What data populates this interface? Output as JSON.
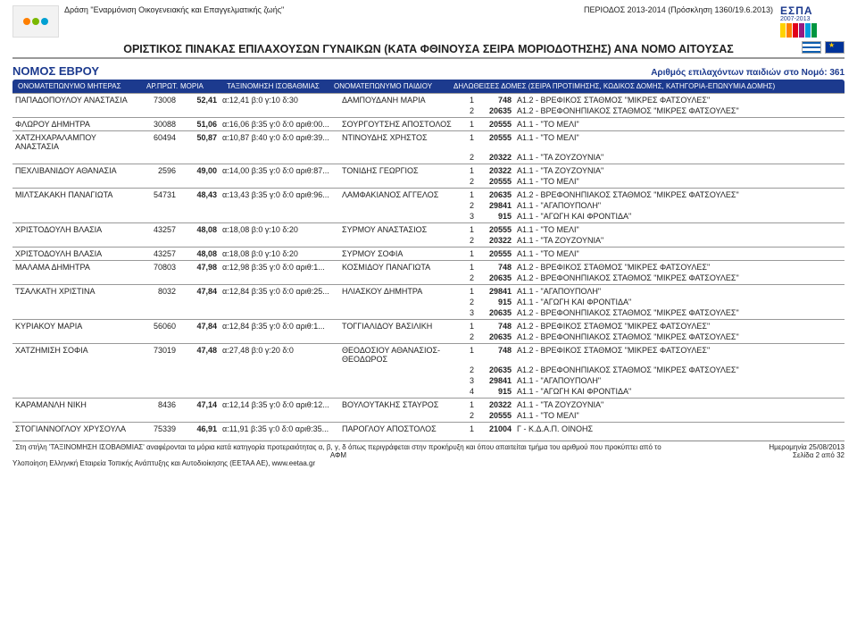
{
  "meta": {
    "action_line": "Δράση \"Εναρμόνιση Οικογενειακής και Επαγγελματικής ζωής\"",
    "period_text": "ΠΕΡΙΟΔΟΣ 2013-2014 (Πρόσκληση 1360/19.6.2013)",
    "main_title": "ΟΡΙΣΤΙΚΟΣ ΠΙΝΑΚΑΣ ΕΠΙΛΑΧΟΥΣΩΝ ΓΥΝΑΙΚΩΝ (ΚΑΤΑ ΦΘΙΝΟΥΣΑ ΣΕΙΡΑ ΜΟΡΙΟΔΟΤΗΣΗΣ) ΑΝΑ ΝΟΜΟ ΑΙΤΟΥΣΑΣ",
    "nomos_label": "ΝΟΜΟΣ ΕΒΡΟΥ",
    "count_text": "Αριθμός επιλαχόντων παιδιών  στο Νομό: 361",
    "espa_label": "ΕΣΠΑ",
    "espa_years": "2007-2013"
  },
  "colors": {
    "header_blue": "#1c3a8e",
    "row_border": "#999999",
    "text": "#222222"
  },
  "column_headers": {
    "name": "ΟΝΟΜΑΤΕΠΩΝΥΜΟ ΜΗΤΕΡΑΣ",
    "arpr": "ΑΡ.ΠΡΩΤ.",
    "moria": "ΜΟΡΙΑ",
    "tax": "ΤΑΞΙΝΟΜΗΣΗ ΙΣΟΒΑΘΜΙΑΣ",
    "child": "ΟΝΟΜΑΤΕΠΩΝΥΜΟ ΠΑΙΔΙΟΥ",
    "domes": "ΔΗΛΩΘΕΙΣΕΣ ΔΟΜΕΣ (ΣΕΙΡΑ ΠΡΟΤΙΜΗΣΗΣ, ΚΩΔΙΚΟΣ ΔΟΜΗΣ, ΚΑΤΗΓΟΡΙΑ-ΕΠΩΝΥΜΙΑ ΔΟΜΗΣ)"
  },
  "rows": [
    {
      "name": "ΠΑΠΑΔΟΠΟΥΛΟΥ ΑΝΑΣΤΑΣΙΑ",
      "arpr": "73008",
      "moria": "52,41",
      "tax": "α:12,41 β:0 γ:10 δ:30",
      "child": "ΔΑΜΠΟΥΔΑΝΗ ΜΑΡΙΑ",
      "domes": [
        {
          "n": "1",
          "code": "748",
          "txt": "Α1.2 - ΒΡΕΦΙΚΟΣ ΣΤΑΘΜΟΣ \"ΜΙΚΡΕΣ ΦΑΤΣΟΥΛΕΣ\""
        },
        {
          "n": "2",
          "code": "20635",
          "txt": "Α1.2 - ΒΡΕΦΟΝΗΠΙΑΚΟΣ ΣΤΑΘΜΟΣ \"ΜΙΚΡΕΣ ΦΑΤΣΟΥΛΕΣ\""
        }
      ]
    },
    {
      "name": "ΦΛΩΡΟΥ ΔΗΜΗΤΡΑ",
      "arpr": "30088",
      "moria": "51,06",
      "tax": "α:16,06 β:35 γ:0 δ:0 αριθ:00...",
      "child": "ΣΟΥΡΓΟΥΤΣΗΣ ΑΠΟΣΤΟΛΟΣ",
      "domes": [
        {
          "n": "1",
          "code": "20555",
          "txt": "Α1.1 - \"ΤΟ ΜΕΛΙ\""
        }
      ]
    },
    {
      "name": "ΧΑΤΖΗΧΑΡΑΛΑΜΠΟΥ ΑΝΑΣΤΑΣΙΑ",
      "arpr": "60494",
      "moria": "50,87",
      "tax": "α:10,87 β:40 γ:0 δ:0 αριθ:39...",
      "child": "ΝΤΙΝΟΥΔΗΣ ΧΡΗΣΤΟΣ",
      "domes": [
        {
          "n": "1",
          "code": "20555",
          "txt": "Α1.1 - \"ΤΟ ΜΕΛΙ\""
        },
        {
          "n": "2",
          "code": "20322",
          "txt": "Α1.1 - \"ΤΑ ΖΟΥΖΟΥΝΙΑ\""
        }
      ]
    },
    {
      "name": "ΠΕΧΛΙΒΑΝΙΔΟΥ ΑΘΑΝΑΣΙΑ",
      "arpr": "2596",
      "moria": "49,00",
      "tax": "α:14,00 β:35 γ:0 δ:0 αριθ:87...",
      "child": "ΤΟΝΙΔΗΣ ΓΕΩΡΓΙΟΣ",
      "domes": [
        {
          "n": "1",
          "code": "20322",
          "txt": "Α1.1 - \"ΤΑ ΖΟΥΖΟΥΝΙΑ\""
        },
        {
          "n": "2",
          "code": "20555",
          "txt": "Α1.1 - \"ΤΟ ΜΕΛΙ\""
        }
      ]
    },
    {
      "name": "ΜΙΛΤΣΑΚΑΚΗ ΠΑΝΑΓΙΩΤΑ",
      "arpr": "54731",
      "moria": "48,43",
      "tax": "α:13,43 β:35 γ:0 δ:0 αριθ:96...",
      "child": "ΛΑΜΦΑΚΙΑΝΟΣ ΑΓΓΕΛΟΣ",
      "domes": [
        {
          "n": "1",
          "code": "20635",
          "txt": "Α1.2 - ΒΡΕΦΟΝΗΠΙΑΚΟΣ ΣΤΑΘΜΟΣ \"ΜΙΚΡΕΣ ΦΑΤΣΟΥΛΕΣ\""
        },
        {
          "n": "2",
          "code": "29841",
          "txt": "Α1.1 - \"ΑΓΑΠΟΥΠΟΛΗ\""
        },
        {
          "n": "3",
          "code": "915",
          "txt": "Α1.1 - \"ΑΓΩΓΗ ΚΑΙ ΦΡΟΝΤΙΔΑ\""
        }
      ]
    },
    {
      "name": "ΧΡΙΣΤΟΔΟΥΛΗ ΒΛΑΣΙΑ",
      "arpr": "43257",
      "moria": "48,08",
      "tax": "α:18,08 β:0 γ:10 δ:20",
      "child": "ΣΥΡΜΟΥ ΑΝΑΣΤΑΣΙΟΣ",
      "domes": [
        {
          "n": "1",
          "code": "20555",
          "txt": "Α1.1 - \"ΤΟ ΜΕΛΙ\""
        },
        {
          "n": "2",
          "code": "20322",
          "txt": "Α1.1 - \"ΤΑ ΖΟΥΖΟΥΝΙΑ\""
        }
      ]
    },
    {
      "name": "ΧΡΙΣΤΟΔΟΥΛΗ ΒΛΑΣΙΑ",
      "arpr": "43257",
      "moria": "48,08",
      "tax": "α:18,08 β:0 γ:10 δ:20",
      "child": "ΣΥΡΜΟΥ ΣΟΦΙΑ",
      "domes": [
        {
          "n": "1",
          "code": "20555",
          "txt": "Α1.1 - \"ΤΟ ΜΕΛΙ\""
        }
      ]
    },
    {
      "name": "ΜΑΛΑΜΑ ΔΗΜΗΤΡΑ",
      "arpr": "70803",
      "moria": "47,98",
      "tax": "α:12,98 β:35 γ:0 δ:0 αριθ:1...",
      "child": "ΚΟΣΜΙΔΟΥ ΠΑΝΑΓΙΩΤΑ",
      "domes": [
        {
          "n": "1",
          "code": "748",
          "txt": "Α1.2 - ΒΡΕΦΙΚΟΣ ΣΤΑΘΜΟΣ \"ΜΙΚΡΕΣ ΦΑΤΣΟΥΛΕΣ\""
        },
        {
          "n": "2",
          "code": "20635",
          "txt": "Α1.2 - ΒΡΕΦΟΝΗΠΙΑΚΟΣ ΣΤΑΘΜΟΣ \"ΜΙΚΡΕΣ ΦΑΤΣΟΥΛΕΣ\""
        }
      ]
    },
    {
      "name": "ΤΣΑΛΚΑΤΗ ΧΡΙΣΤΙΝΑ",
      "arpr": "8032",
      "moria": "47,84",
      "tax": "α:12,84 β:35 γ:0 δ:0 αριθ:25...",
      "child": "ΗΛΙΑΣΚΟΥ ΔΗΜΗΤΡΑ",
      "domes": [
        {
          "n": "1",
          "code": "29841",
          "txt": "Α1.1 - \"ΑΓΑΠΟΥΠΟΛΗ\""
        },
        {
          "n": "2",
          "code": "915",
          "txt": "Α1.1 - \"ΑΓΩΓΗ ΚΑΙ ΦΡΟΝΤΙΔΑ\""
        },
        {
          "n": "3",
          "code": "20635",
          "txt": "Α1.2 - ΒΡΕΦΟΝΗΠΙΑΚΟΣ ΣΤΑΘΜΟΣ \"ΜΙΚΡΕΣ ΦΑΤΣΟΥΛΕΣ\""
        }
      ]
    },
    {
      "name": "ΚΥΡΙΑΚΟΥ ΜΑΡΙΑ",
      "arpr": "56060",
      "moria": "47,84",
      "tax": "α:12,84 β:35 γ:0 δ:0 αριθ:1...",
      "child": "ΤΟΓΓΙΑΛΙΔΟΥ ΒΑΣΙΛΙΚΗ",
      "domes": [
        {
          "n": "1",
          "code": "748",
          "txt": "Α1.2 - ΒΡΕΦΙΚΟΣ ΣΤΑΘΜΟΣ \"ΜΙΚΡΕΣ ΦΑΤΣΟΥΛΕΣ\""
        },
        {
          "n": "2",
          "code": "20635",
          "txt": "Α1.2 - ΒΡΕΦΟΝΗΠΙΑΚΟΣ ΣΤΑΘΜΟΣ \"ΜΙΚΡΕΣ ΦΑΤΣΟΥΛΕΣ\""
        }
      ]
    },
    {
      "name": "ΧΑΤΖΗΜΙΣΗ ΣΟΦΙΑ",
      "arpr": "73019",
      "moria": "47,48",
      "tax": "α:27,48 β:0 γ:20 δ:0",
      "child": "ΘΕΟΔΟΣΙΟΥ ΑΘΑΝΑΣΙΟΣ-ΘΕΟΔΩΡΟΣ",
      "domes": [
        {
          "n": "1",
          "code": "748",
          "txt": "Α1.2 - ΒΡΕΦΙΚΟΣ ΣΤΑΘΜΟΣ \"ΜΙΚΡΕΣ ΦΑΤΣΟΥΛΕΣ\""
        },
        {
          "n": "2",
          "code": "20635",
          "txt": "Α1.2 - ΒΡΕΦΟΝΗΠΙΑΚΟΣ ΣΤΑΘΜΟΣ \"ΜΙΚΡΕΣ ΦΑΤΣΟΥΛΕΣ\""
        },
        {
          "n": "3",
          "code": "29841",
          "txt": "Α1.1 - \"ΑΓΑΠΟΥΠΟΛΗ\""
        },
        {
          "n": "4",
          "code": "915",
          "txt": "Α1.1 - \"ΑΓΩΓΗ ΚΑΙ ΦΡΟΝΤΙΔΑ\""
        }
      ]
    },
    {
      "name": "ΚΑΡΑΜΑΝΛΗ ΝΙΚΗ",
      "arpr": "8436",
      "moria": "47,14",
      "tax": "α:12,14 β:35 γ:0 δ:0 αριθ:12...",
      "child": "ΒΟΥΛΟΥΤΑΚΗΣ ΣΤΑΥΡΟΣ",
      "domes": [
        {
          "n": "1",
          "code": "20322",
          "txt": "Α1.1 - \"ΤΑ ΖΟΥΖΟΥΝΙΑ\""
        },
        {
          "n": "2",
          "code": "20555",
          "txt": "Α1.1 - \"ΤΟ ΜΕΛΙ\""
        }
      ]
    },
    {
      "name": "ΣΤΟΓΙΑΝΝΟΓΛΟΥ ΧΡΥΣΟΥΛΑ",
      "arpr": "75339",
      "moria": "46,91",
      "tax": "α:11,91 β:35 γ:0 δ:0 αριθ:35...",
      "child": "ΠΑΡΟΓΛΟΥ ΑΠΟΣΤΟΛΟΣ",
      "domes": [
        {
          "n": "1",
          "code": "21004",
          "txt": "Γ - Κ.Δ.Α.Π. ΟΙΝΟΗΣ"
        }
      ]
    }
  ],
  "footer": {
    "note_line": "Στη στήλη 'ΤΑΞΙΝΟΜΗΣΗ ΙΣΟΒΑΘΜΙΑΣ' αναφέρονται τα μόρια κατά κατηγορία προτεραιότητας α, β, γ, δ όπως περιγράφεται στην προκήρυξη και όπου απαιτείται τμήμα του αριθμού που προκύπτει από το ΑΦΜ",
    "impl_line": "Υλοποίηση Ελληνική Εταιρεία Τοπικής Ανάπτυξης και Αυτοδιοίκησης (ΕΕΤΑΑ ΑΕ), www.eetaa.gr",
    "date_text": "Ημερομηνία 25/08/2013",
    "page_text": "Σελίδα 2  από 32"
  }
}
